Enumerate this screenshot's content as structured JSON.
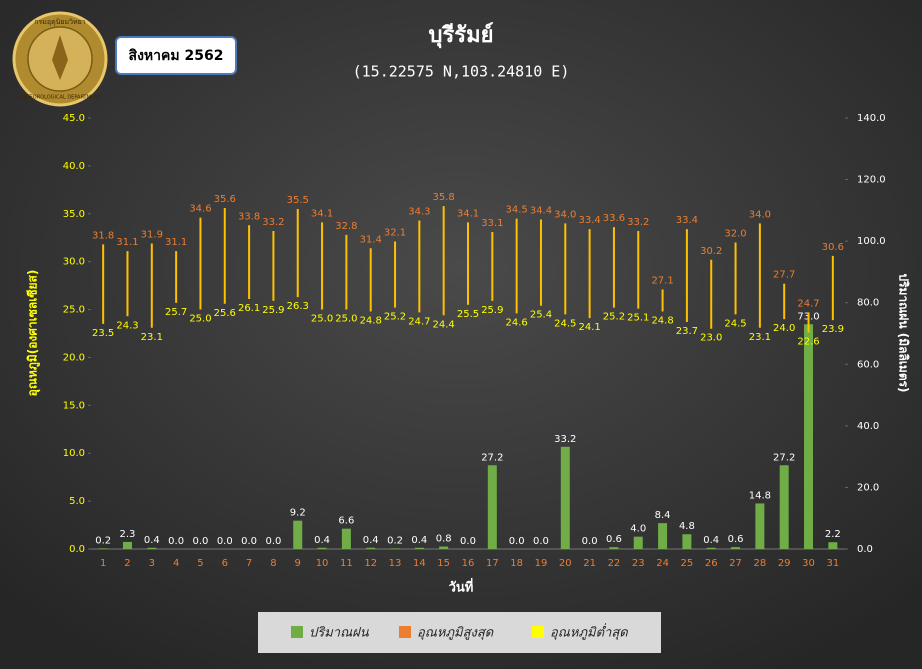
{
  "header": {
    "badge": "สิงหาคม 2562",
    "logo_top": "กรมอุตุนิยมวิทยา",
    "logo_bottom": "METEOROLOGICAL DEPARTMENT"
  },
  "chart_data": {
    "type": "bar",
    "title": "บุรีรัมย์",
    "subtitle": "(15.22575 N,103.24810 E)",
    "x_label": "วันที่",
    "y_label": "อุณหภูมิ(องศาเซลเซียส)",
    "y2_label": "ปริมาณฝน (มิลลิเมตร)",
    "categories": [
      "1",
      "2",
      "3",
      "4",
      "5",
      "6",
      "7",
      "8",
      "9",
      "10",
      "11",
      "12",
      "13",
      "14",
      "15",
      "16",
      "17",
      "18",
      "19",
      "20",
      "21",
      "22",
      "23",
      "24",
      "25",
      "26",
      "27",
      "28",
      "29",
      "30",
      "31"
    ],
    "series": [
      {
        "name": "ปริมาณฝน",
        "color": "#70ad47",
        "type": "bar",
        "axis": "y2",
        "values": [
          0.2,
          2.3,
          0.4,
          0,
          0,
          0,
          0,
          0,
          9.2,
          0.4,
          6.6,
          0.4,
          0.2,
          0.4,
          0.8,
          0,
          27.2,
          0,
          0,
          33.2,
          0,
          0.6,
          4,
          8.4,
          4.8,
          0.4,
          0.6,
          14.8,
          27.2,
          73,
          2.2
        ],
        "value_labels": [
          "0.2",
          "2.3",
          "0.4",
          "0.0",
          "0.0",
          "0.0",
          "0.0",
          "0.0",
          "9.2",
          "0.4",
          "6.6",
          "0.4",
          "0.2",
          "0.4",
          "0.8",
          "0.0",
          "27.2",
          "0.0",
          "0.0",
          "33.2",
          "0.0",
          "0.6",
          "4.0",
          "8.4",
          "4.8",
          "0.4",
          "0.6",
          "14.8",
          "27.2",
          "73.0",
          "2.2"
        ]
      },
      {
        "name": "อุณหภูมิสูงสุด",
        "color": "#ed7d31",
        "type": "range-high",
        "values": [
          31.8,
          31.1,
          31.9,
          31.1,
          34.6,
          35.6,
          33.8,
          33.2,
          35.5,
          34.1,
          32.8,
          31.4,
          32.1,
          34.3,
          35.8,
          34.1,
          33.1,
          34.5,
          34.4,
          34,
          33.4,
          33.6,
          33.2,
          27.1,
          33.4,
          30.2,
          32,
          34,
          27.7,
          24.7,
          30.6
        ],
        "value_labels": [
          "31.8",
          "31.1",
          "31.9",
          "31.1",
          "34.6",
          "35.6",
          "33.8",
          "33.2",
          "35.5",
          "34.1",
          "32.8",
          "31.4",
          "32.1",
          "34.3",
          "35.8",
          "34.1",
          "33.1",
          "34.5",
          "34.4",
          "34.0",
          "33.4",
          "33.6",
          "33.2",
          "27.1",
          "33.4",
          "30.2",
          "32.0",
          "34.0",
          "27.7",
          "24.7",
          "30.6"
        ]
      },
      {
        "name": "อุณหภูมิต่ำสุด",
        "color": "#ffff00",
        "type": "range-low",
        "values": [
          23.5,
          24.3,
          23.1,
          25.7,
          25,
          25.6,
          26.1,
          25.9,
          26.3,
          25,
          25,
          24.8,
          25.2,
          24.7,
          24.4,
          25.5,
          25.9,
          24.6,
          25.4,
          24.5,
          24.1,
          25.2,
          25.1,
          24.8,
          23.7,
          23,
          24.5,
          23.1,
          24,
          22.6,
          23.9
        ],
        "value_labels": [
          "23.5",
          "24.3",
          "23.1",
          "25.7",
          "25.0",
          "25.6",
          "26.1",
          "25.9",
          "26.3",
          "25.0",
          "25.0",
          "24.8",
          "25.2",
          "24.7",
          "24.4",
          "25.5",
          "25.9",
          "24.6",
          "25.4",
          "24.5",
          "24.1",
          "25.2",
          "25.1",
          "24.8",
          "23.7",
          "23.0",
          "24.5",
          "23.1",
          "24.0",
          "22.6",
          "23.9"
        ]
      }
    ],
    "range_color": "#ffc000",
    "ylim": [
      0,
      45
    ],
    "yticks": [
      {
        "value": 0,
        "label": "0.0"
      },
      {
        "value": 5,
        "label": "5.0"
      },
      {
        "value": 10,
        "label": "10.0"
      },
      {
        "value": 15,
        "label": "15.0"
      },
      {
        "value": 20,
        "label": "20.0"
      },
      {
        "value": 25,
        "label": "25.0"
      },
      {
        "value": 30,
        "label": "30.0"
      },
      {
        "value": 35,
        "label": "35.0"
      },
      {
        "value": 40,
        "label": "40.0"
      },
      {
        "value": 45,
        "label": "45.0"
      }
    ],
    "y2lim": [
      0,
      140
    ],
    "y2ticks": [
      {
        "value": 0,
        "label": "0.0"
      },
      {
        "value": 20,
        "label": "20.0"
      },
      {
        "value": 40,
        "label": "40.0"
      },
      {
        "value": 60,
        "label": "60.0"
      },
      {
        "value": 80,
        "label": "80.0"
      },
      {
        "value": 100,
        "label": "100.0"
      },
      {
        "value": 120,
        "label": "120.0"
      },
      {
        "value": 140,
        "label": "140.0"
      }
    ],
    "legend": "bottom"
  }
}
